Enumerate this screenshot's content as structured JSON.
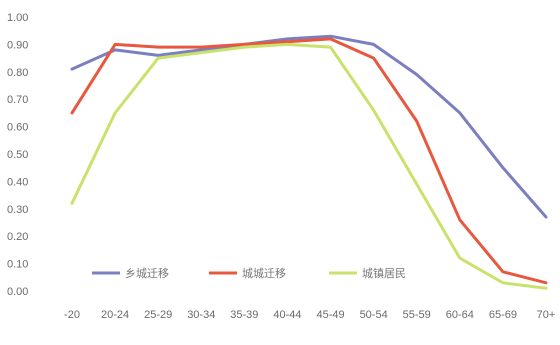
{
  "chart_data": {
    "type": "line",
    "title": "",
    "xlabel": "",
    "ylabel": "",
    "ylim": [
      0,
      1.0
    ],
    "y_ticks": [
      "0.00",
      "0.10",
      "0.20",
      "0.30",
      "0.40",
      "0.50",
      "0.60",
      "0.70",
      "0.80",
      "0.90",
      "1.00"
    ],
    "categories": [
      "-20",
      "20-24",
      "25-29",
      "30-34",
      "35-39",
      "40-44",
      "45-49",
      "50-54",
      "55-59",
      "60-64",
      "65-69",
      "70+"
    ],
    "grid": false,
    "legend_position": "inside-bottom-left",
    "series": [
      {
        "name": "乡城迁移",
        "color": "#7b7fbf",
        "values": [
          0.81,
          0.88,
          0.86,
          0.88,
          0.9,
          0.92,
          0.93,
          0.9,
          0.79,
          0.65,
          0.45,
          0.27
        ]
      },
      {
        "name": "城城迁移",
        "color": "#e8583f",
        "values": [
          0.65,
          0.9,
          0.89,
          0.89,
          0.9,
          0.91,
          0.92,
          0.85,
          0.62,
          0.26,
          0.07,
          0.03
        ]
      },
      {
        "name": "城镇居民",
        "color": "#c8e26b",
        "values": [
          0.32,
          0.65,
          0.85,
          0.87,
          0.89,
          0.9,
          0.89,
          0.66,
          0.39,
          0.12,
          0.03,
          0.01
        ]
      }
    ]
  }
}
